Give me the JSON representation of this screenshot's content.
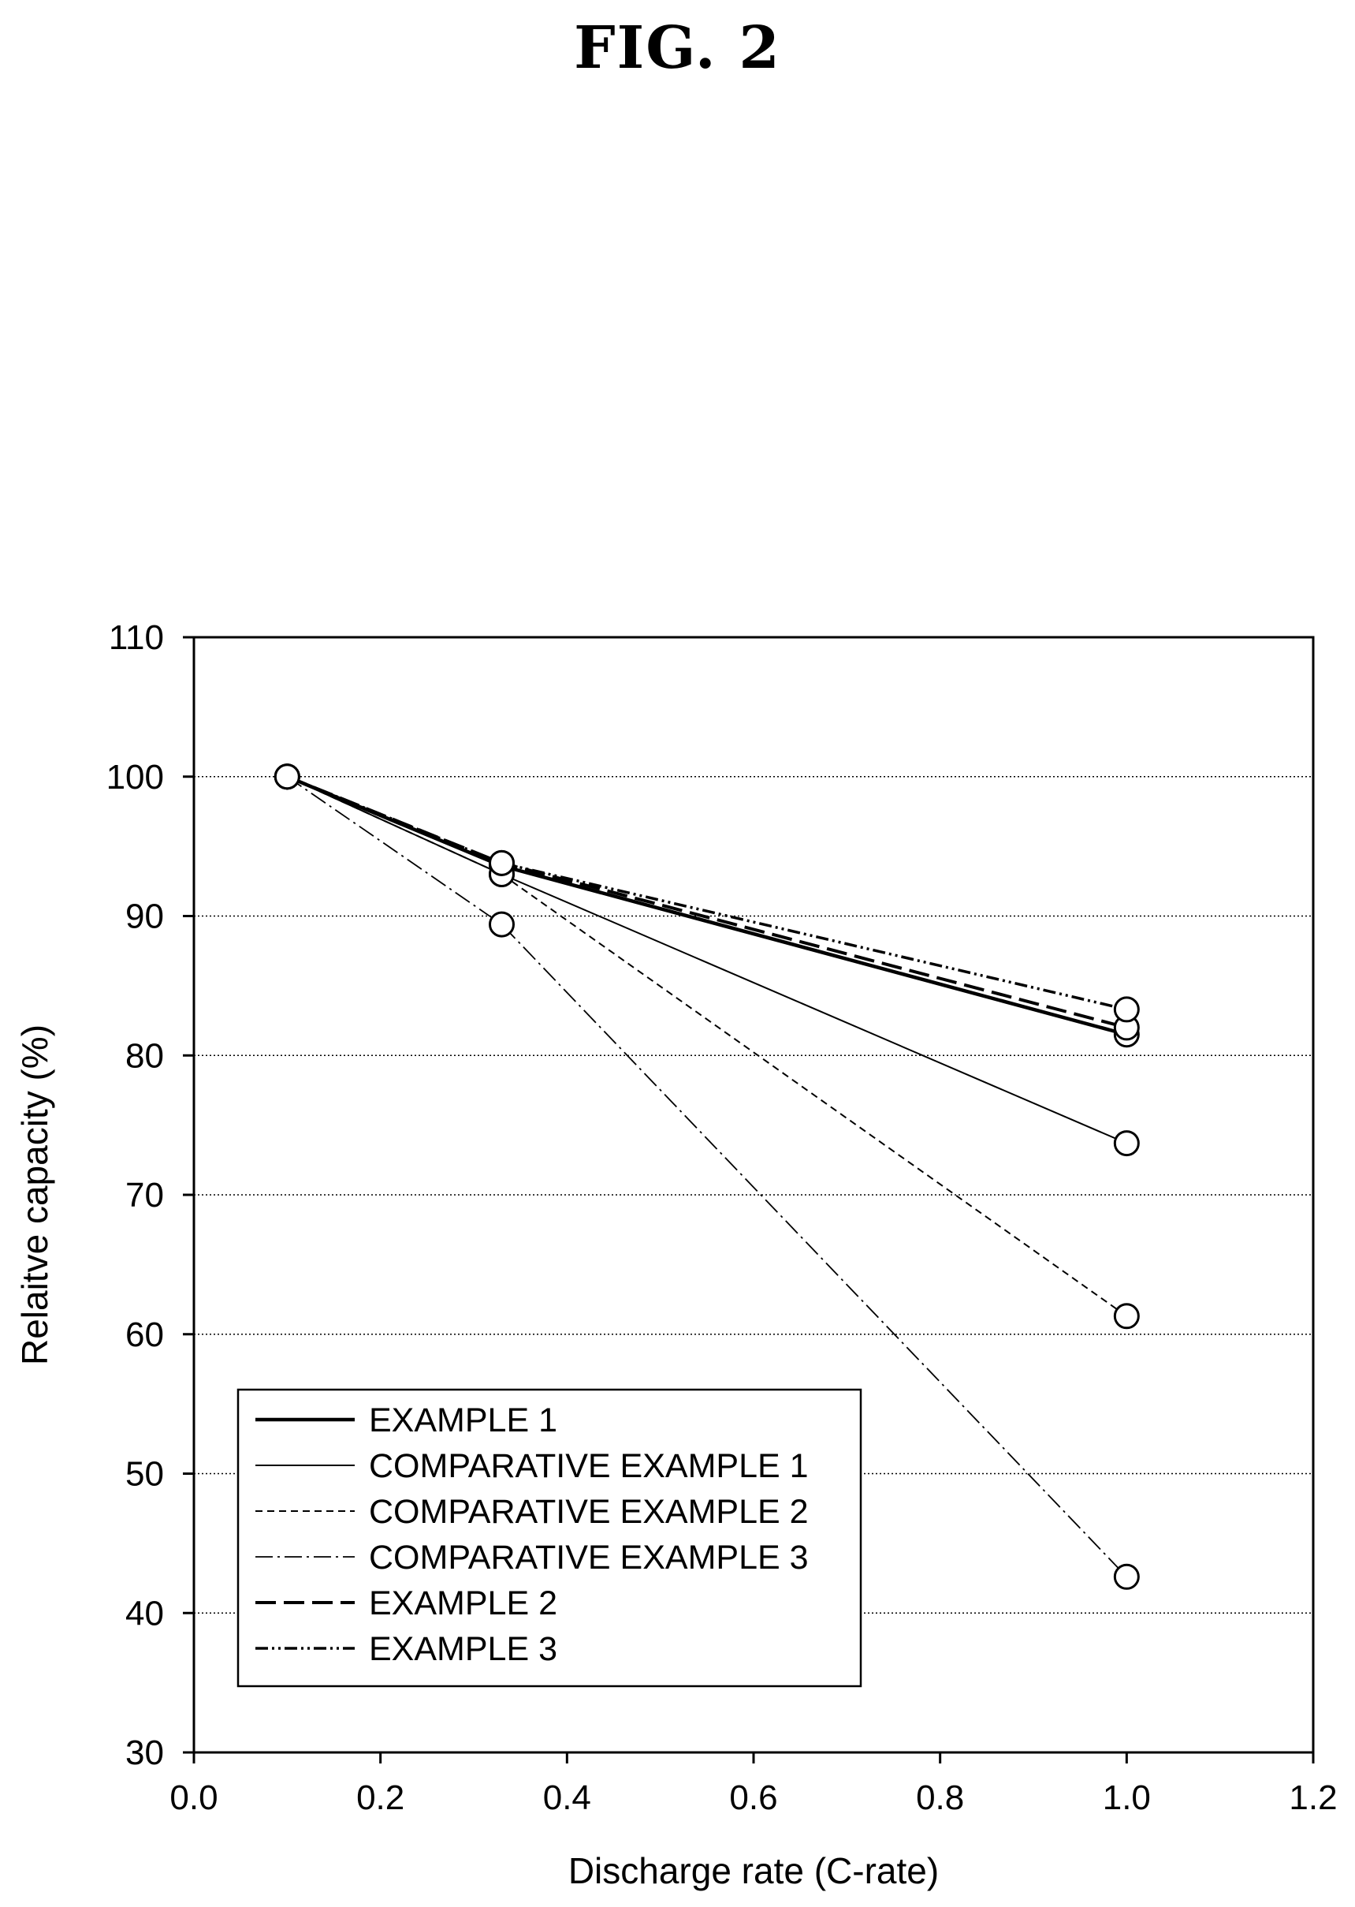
{
  "figure_title": "FIG. 2",
  "chart_data": {
    "type": "line",
    "title": "",
    "xlabel": "Discharge rate (C-rate)",
    "ylabel": "Relaitve capacity (%)",
    "xlim": [
      0.0,
      1.2
    ],
    "ylim": [
      30,
      110
    ],
    "xticks": [
      0.0,
      0.2,
      0.4,
      0.6,
      0.8,
      1.0,
      1.2
    ],
    "xtick_labels": [
      "0.0",
      "0.2",
      "0.4",
      "0.6",
      "0.8",
      "1.0",
      "1.2"
    ],
    "yticks": [
      30,
      40,
      50,
      60,
      70,
      80,
      90,
      100,
      110
    ],
    "ytick_labels": [
      "30",
      "40",
      "50",
      "60",
      "70",
      "80",
      "90",
      "100",
      "110"
    ],
    "grid": "horizontal dotted",
    "legend_position": "bottom-left",
    "x": [
      0.1,
      0.33,
      1.0
    ],
    "marker": "open-circle",
    "series": [
      {
        "name": "EXAMPLE 1",
        "values": [
          100,
          93.6,
          81.5
        ],
        "style": "solid-thick"
      },
      {
        "name": "COMPARATIVE EXAMPLE 1",
        "values": [
          100,
          93.0,
          73.7
        ],
        "style": "solid-thin"
      },
      {
        "name": "COMPARATIVE EXAMPLE 2",
        "values": [
          100,
          93.0,
          61.3
        ],
        "style": "short-dash"
      },
      {
        "name": "COMPARATIVE EXAMPLE 3",
        "values": [
          100,
          89.4,
          42.6
        ],
        "style": "dash-dot"
      },
      {
        "name": "EXAMPLE 2",
        "values": [
          100,
          93.8,
          82.0
        ],
        "style": "long-dash"
      },
      {
        "name": "EXAMPLE 3",
        "values": [
          100,
          93.8,
          83.3
        ],
        "style": "dash-dot-dot"
      }
    ]
  }
}
